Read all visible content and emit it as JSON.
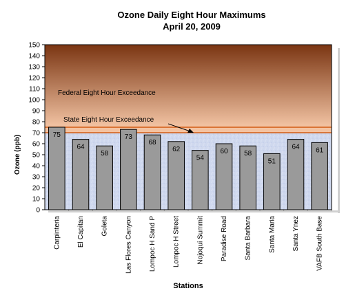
{
  "chart_data": {
    "type": "bar",
    "title": "Ozone Daily Eight Hour Maximums",
    "subtitle": "April 20, 2009",
    "xlabel": "Stations",
    "ylabel": "Ozone (ppb)",
    "ylim": [
      0,
      150
    ],
    "ytick_step": 10,
    "categories": [
      "Carpinteria",
      "El Capitan",
      "Goleta",
      "Las Flores Canyon",
      "Lompoc H Sand P",
      "Lompoc H Street",
      "Nojoqui Summit",
      "Paradise Road",
      "Santa Barbara",
      "Santa Maria",
      "Santa Ynez",
      "VAFB South Base"
    ],
    "values": [
      75,
      64,
      58,
      73,
      68,
      62,
      54,
      60,
      58,
      51,
      64,
      61
    ],
    "bar_color": "#9a9a9a",
    "grid": false,
    "bands": [
      {
        "label": "Federal Eight Hour Exceedance",
        "from": 75,
        "to": 150,
        "color_top": "#7a3512",
        "color_bottom": "#f3c4a4"
      },
      {
        "label": "State Eight Hour Exceedance",
        "from": 70,
        "to": 75,
        "color": "#f4c2a0"
      }
    ],
    "below_band_color": "#cfd8ee"
  }
}
